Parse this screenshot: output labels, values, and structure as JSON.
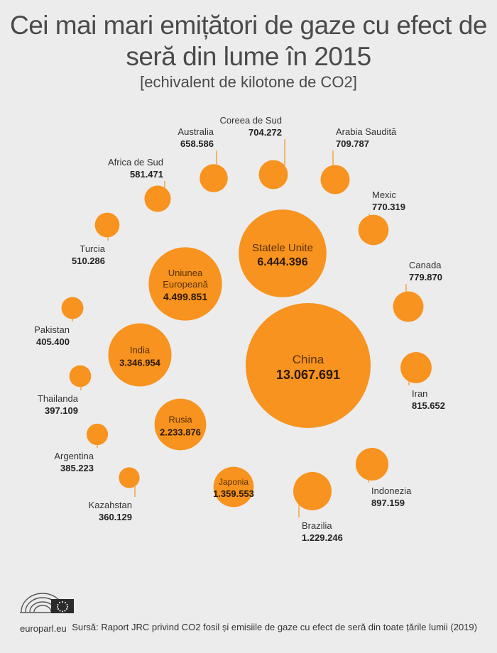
{
  "title_lines": [
    "Cei mai mari emițători de gaze cu efect de",
    "seră din lume în 2015"
  ],
  "subtitle": "[echivalent de kilotone de CO2]",
  "colors": {
    "bubble": "#f7931e",
    "leader": "#f7931e",
    "text_dark": "#222222",
    "background": "#ececec"
  },
  "chart_data": {
    "type": "bubble",
    "unit": "kilotone echivalent CO2",
    "items": [
      {
        "name": "China",
        "value": "13.067.691",
        "v": 13067691
      },
      {
        "name": "Statele Unite",
        "value": "6.444.396",
        "v": 6444396
      },
      {
        "name": "Uniunea Europeană",
        "value": "4.499.851",
        "v": 4499851
      },
      {
        "name": "India",
        "value": "3.346.954",
        "v": 3346954
      },
      {
        "name": "Rusia",
        "value": "2.233.876",
        "v": 2233876
      },
      {
        "name": "Japonia",
        "value": "1.359.553",
        "v": 1359553
      },
      {
        "name": "Brazilia",
        "value": "1.229.246",
        "v": 1229246
      },
      {
        "name": "Indonezia",
        "value": "897.159",
        "v": 897159
      },
      {
        "name": "Iran",
        "value": "815.652",
        "v": 815652
      },
      {
        "name": "Canada",
        "value": "779.870",
        "v": 779870
      },
      {
        "name": "Mexic",
        "value": "770.319",
        "v": 770319
      },
      {
        "name": "Arabia Saudită",
        "value": "709.787",
        "v": 709787
      },
      {
        "name": "Coreea de Sud",
        "value": "704.272",
        "v": 704272
      },
      {
        "name": "Australia",
        "value": "658.586",
        "v": 658586
      },
      {
        "name": "Africa de Sud",
        "value": "581.471",
        "v": 581471
      },
      {
        "name": "Turcia",
        "value": "510.286",
        "v": 510286
      },
      {
        "name": "Pakistan",
        "value": "405.400",
        "v": 405400
      },
      {
        "name": "Thailanda",
        "value": "397.109",
        "v": 397109
      },
      {
        "name": "Argentina",
        "value": "385.223",
        "v": 385223
      },
      {
        "name": "Kazahstan",
        "value": "360.129",
        "v": 360129
      }
    ]
  },
  "footer": {
    "site": "europarl.eu",
    "source": "Sursă: Raport JRC privind CO2 fosil și emisiile de gaze cu efect de seră din toate țările lumii (2019)"
  }
}
